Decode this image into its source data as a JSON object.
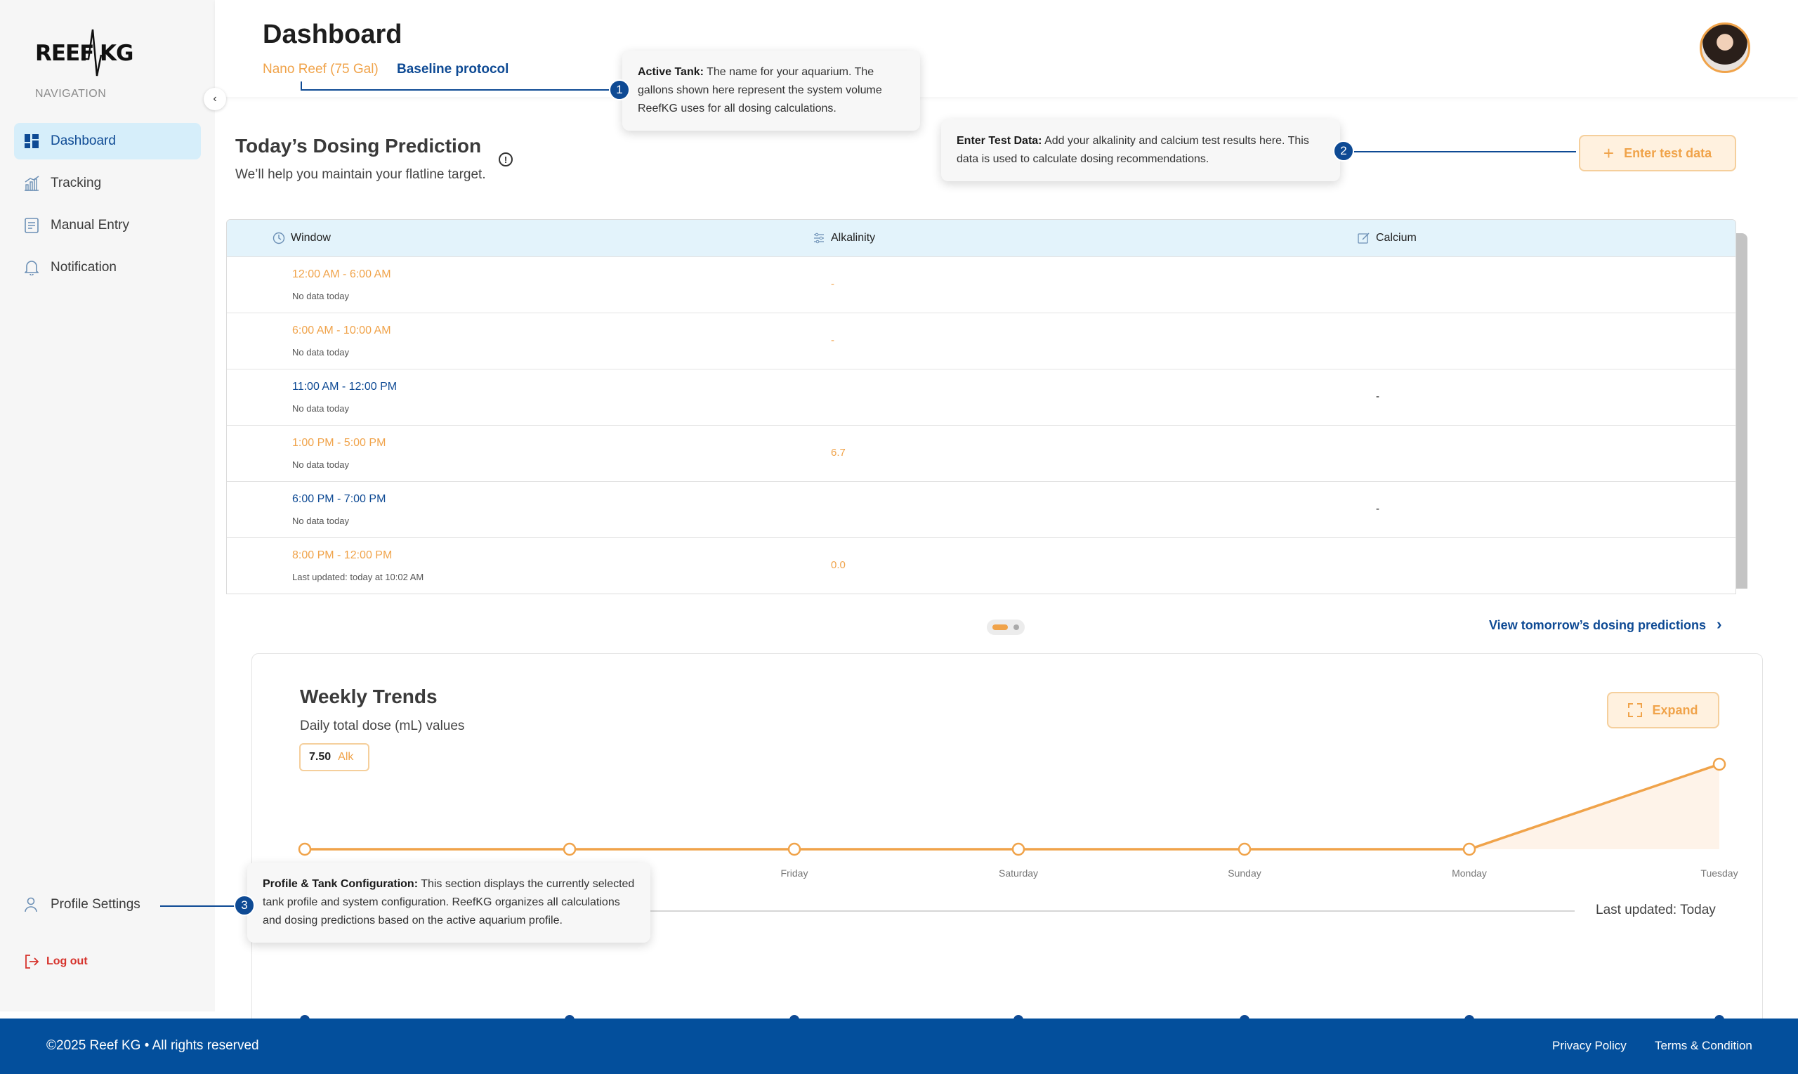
{
  "sidebar": {
    "logo_text_left": "REEF",
    "logo_text_right": "KG",
    "nav_caption": "NAVIGATION",
    "collapse_glyph": "‹",
    "items": [
      {
        "label": "Dashboard",
        "icon": "dashboard-icon",
        "active": true
      },
      {
        "label": "Tracking",
        "icon": "chart-icon",
        "active": false
      },
      {
        "label": "Manual Entry",
        "icon": "document-icon",
        "active": false
      },
      {
        "label": "Notification",
        "icon": "bell-icon",
        "active": false
      }
    ],
    "profile_label": "Profile Settings",
    "logout_label": "Log out"
  },
  "header": {
    "title": "Dashboard",
    "tank": "Nano Reef (75 Gal)",
    "protocol": "Baseline protocol"
  },
  "tooltips": {
    "active_tank": {
      "num": "1",
      "title": "Active Tank:",
      "body": "The name for your aquarium. The gallons shown here represent the system volume ReefKG uses for all dosing calculations."
    },
    "test_data": {
      "num": "2",
      "title": "Enter Test Data:",
      "body": "Add your alkalinity and calcium test results here. This data is used to calculate dosing recommendations."
    },
    "profile": {
      "num": "3",
      "title": "Profile & Tank Configuration:",
      "body": "This section displays the currently selected tank profile and system configuration. ReefKG organizes all calculations and dosing predictions based on the active aquarium profile."
    }
  },
  "prediction": {
    "title": "Today’s Dosing Prediction",
    "info_glyph": "!",
    "subtitle": "We’ll help you maintain your flatline target.",
    "enter_button": "Enter test data",
    "enter_plus": "+",
    "columns": {
      "window": "Window",
      "alkalinity": "Alkalinity",
      "calcium": "Calcium"
    },
    "rows": [
      {
        "window": "12:00 AM - 6:00 AM",
        "note": "No data today",
        "alk": "-",
        "ca": "",
        "color": "orange"
      },
      {
        "window": "6:00 AM - 10:00 AM",
        "note": "No data today",
        "alk": "-",
        "ca": "",
        "color": "orange"
      },
      {
        "window": "11:00 AM - 12:00 PM",
        "note": "No data today",
        "alk": "",
        "ca": "-",
        "color": "blue"
      },
      {
        "window": "1:00 PM - 5:00 PM",
        "note": "No data today",
        "alk": "6.7",
        "ca": "",
        "color": "orange"
      },
      {
        "window": "6:00 PM - 7:00 PM",
        "note": "No data today",
        "alk": "",
        "ca": "-",
        "color": "blue"
      },
      {
        "window": "8:00 PM - 12:00 PM",
        "note": "Last updated: today at 10:02 AM",
        "alk": "0.0",
        "ca": "",
        "color": "orange"
      }
    ],
    "tomorrow_link": "View tomorrow’s dosing predictions",
    "tomorrow_chevron": "›"
  },
  "weekly": {
    "title": "Weekly Trends",
    "subtitle": "Daily total dose (mL) values",
    "legend_value": "7.50",
    "legend_name": "Alk",
    "expand_button": "Expand",
    "last_updated": "Last updated: Today"
  },
  "chart_data": {
    "type": "area",
    "categories": [
      "",
      "",
      "Friday",
      "Saturday",
      "Sunday",
      "Monday",
      "Tuesday"
    ],
    "series": [
      {
        "name": "Alk",
        "values": [
          0,
          0,
          0,
          0,
          0,
          0,
          7.5
        ]
      }
    ],
    "xlabel": "",
    "ylabel": "",
    "grid": false,
    "color": "#f0a34a"
  },
  "footer": {
    "copyright": "©2025 Reef KG • All rights reserved",
    "privacy": "Privacy Policy",
    "terms": "Terms & Condition"
  },
  "colors": {
    "brand_blue": "#0e4a94",
    "accent_orange": "#f0a34a",
    "footer_blue": "#034f9c"
  }
}
